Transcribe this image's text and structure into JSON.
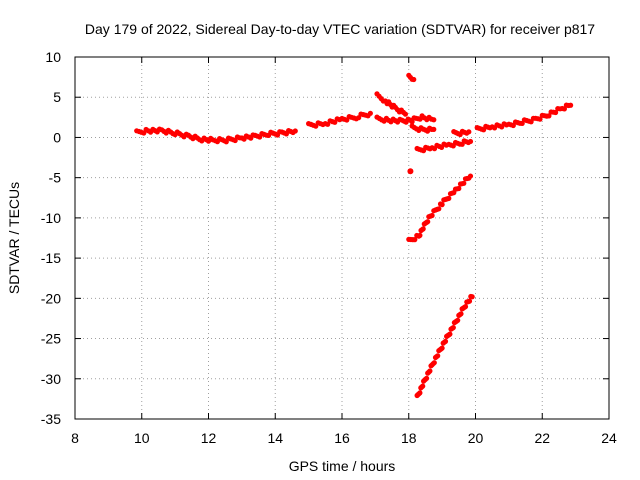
{
  "chart_data": {
    "type": "scatter",
    "title": "Day 179 of 2022, Sidereal Day-to-day VTEC variation (SDTVAR) for receiver p817",
    "xlabel": "GPS time / hours",
    "ylabel": "SDTVAR / TECUs",
    "xlim": [
      8,
      24
    ],
    "ylim": [
      -35,
      10
    ],
    "xticks": [
      8,
      10,
      12,
      14,
      16,
      18,
      20,
      22,
      24
    ],
    "yticks": [
      10,
      5,
      0,
      -5,
      -10,
      -15,
      -20,
      -25,
      -30,
      -35
    ],
    "grid": true,
    "series_color": "#ff0000",
    "series": [
      {
        "points": [
          [
            9.85,
            0.6
          ],
          [
            10.2,
            0.9
          ],
          [
            10.6,
            0.8
          ],
          [
            11.0,
            0.5
          ],
          [
            11.4,
            0.2
          ],
          [
            11.8,
            -0.2
          ],
          [
            12.2,
            -0.4
          ],
          [
            12.6,
            -0.3
          ],
          [
            13.0,
            0.0
          ],
          [
            13.4,
            0.1
          ],
          [
            13.8,
            0.4
          ],
          [
            14.2,
            0.6
          ],
          [
            14.6,
            0.8
          ]
        ]
      },
      {
        "points": [
          [
            15.0,
            1.5
          ],
          [
            15.5,
            1.8
          ],
          [
            16.0,
            2.2
          ],
          [
            16.5,
            2.6
          ],
          [
            16.85,
            3.0
          ]
        ]
      },
      {
        "points": [
          [
            17.05,
            5.2
          ],
          [
            17.3,
            4.6
          ],
          [
            17.6,
            3.6
          ],
          [
            17.9,
            2.9
          ]
        ]
      },
      {
        "points": [
          [
            17.05,
            2.3
          ],
          [
            17.4,
            2.2
          ],
          [
            17.8,
            2.0
          ],
          [
            18.1,
            2.1
          ],
          [
            18.4,
            2.6
          ],
          [
            18.75,
            2.2
          ]
        ]
      },
      {
        "points": [
          [
            18.1,
            1.2
          ],
          [
            18.5,
            1.0
          ],
          [
            18.75,
            1.0
          ]
        ]
      },
      {
        "points": [
          [
            18.0,
            7.5
          ],
          [
            18.15,
            7.2
          ]
        ]
      },
      {
        "points": [
          [
            18.05,
            -4.2
          ]
        ]
      },
      {
        "points": [
          [
            18.25,
            -1.6
          ],
          [
            18.7,
            -1.2
          ],
          [
            19.2,
            -1.0
          ],
          [
            19.6,
            -0.7
          ],
          [
            19.85,
            -0.5
          ]
        ]
      },
      {
        "points": [
          [
            19.35,
            0.5
          ],
          [
            19.8,
            0.7
          ]
        ]
      },
      {
        "points": [
          [
            20.05,
            1.0
          ],
          [
            20.5,
            1.4
          ],
          [
            21.0,
            1.5
          ],
          [
            21.4,
            1.9
          ],
          [
            21.8,
            2.3
          ],
          [
            22.2,
            2.9
          ],
          [
            22.6,
            3.6
          ],
          [
            22.85,
            4.0
          ]
        ]
      },
      {
        "points": [
          [
            18.0,
            -12.9
          ],
          [
            18.3,
            -12.2
          ],
          [
            18.6,
            -10.0
          ],
          [
            19.0,
            -8.2
          ],
          [
            19.4,
            -6.5
          ],
          [
            19.85,
            -4.8
          ]
        ]
      },
      {
        "points": [
          [
            18.25,
            -32.3
          ],
          [
            18.5,
            -30.0
          ],
          [
            18.8,
            -27.5
          ],
          [
            19.1,
            -25.2
          ],
          [
            19.4,
            -23.0
          ],
          [
            19.7,
            -20.8
          ],
          [
            19.9,
            -19.8
          ]
        ]
      }
    ]
  }
}
